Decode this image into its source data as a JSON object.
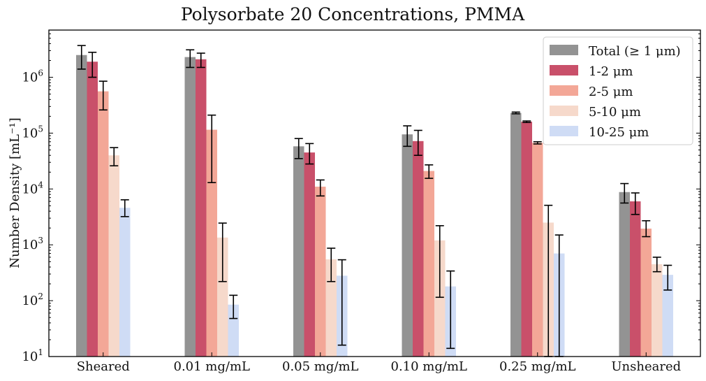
{
  "chart_data": {
    "type": "bar",
    "title": "Polysorbate 20 Concentrations, PMMA",
    "xlabel": "",
    "ylabel": "Number Density [mL⁻¹]",
    "yscale": "log",
    "ylim": [
      10,
      7000000
    ],
    "y_ticks": [
      {
        "value": 10,
        "base": "10",
        "exp": "1"
      },
      {
        "value": 100,
        "base": "10",
        "exp": "2"
      },
      {
        "value": 1000,
        "base": "10",
        "exp": "3"
      },
      {
        "value": 10000,
        "base": "10",
        "exp": "4"
      },
      {
        "value": 100000,
        "base": "10",
        "exp": "5"
      },
      {
        "value": 1000000,
        "base": "10",
        "exp": "6"
      }
    ],
    "categories": [
      "Sheared",
      "0.01 mg/mL",
      "0.05 mg/mL",
      "0.10 mg/mL",
      "0.25 mg/mL",
      "Unsheared"
    ],
    "legend_position": "top-right",
    "grid": false,
    "series": [
      {
        "name": "Total (≥ 1 μm)",
        "color": "#939393",
        "values": [
          2500000,
          2300000,
          58000,
          95000,
          230000,
          8800
        ],
        "err_low": [
          1400000,
          1500000,
          35000,
          58000,
          222000,
          5600
        ],
        "err_high": [
          3700000,
          3100000,
          80000,
          135000,
          238000,
          12500
        ]
      },
      {
        "name": "1-2 μm",
        "color": "#c9506a",
        "values": [
          1900000,
          2100000,
          45000,
          72000,
          160000,
          6000
        ],
        "err_low": [
          1000000,
          1500000,
          28000,
          40000,
          155000,
          3500
        ],
        "err_high": [
          2800000,
          2700000,
          65000,
          112000,
          165000,
          8500
        ]
      },
      {
        "name": "2-5 μm",
        "color": "#f3a797",
        "values": [
          560000,
          115000,
          11000,
          21000,
          67000,
          1950
        ],
        "err_low": [
          260000,
          13000,
          7500,
          15500,
          64000,
          1400
        ],
        "err_high": [
          850000,
          210000,
          14500,
          27000,
          70000,
          2700
        ]
      },
      {
        "name": "5-10 μm",
        "color": "#f6d9cb",
        "values": [
          40000,
          1350,
          550,
          1200,
          2500,
          450
        ],
        "err_low": [
          26000,
          220,
          220,
          115,
          10,
          330
        ],
        "err_high": [
          55000,
          2450,
          870,
          2200,
          5100,
          600
        ]
      },
      {
        "name": "10-25 μm",
        "color": "#cfdcf5",
        "values": [
          4600,
          85,
          280,
          180,
          700,
          290
        ],
        "err_low": [
          3200,
          48,
          16,
          14,
          10,
          155
        ],
        "err_high": [
          6400,
          125,
          540,
          340,
          1500,
          430
        ]
      }
    ]
  }
}
